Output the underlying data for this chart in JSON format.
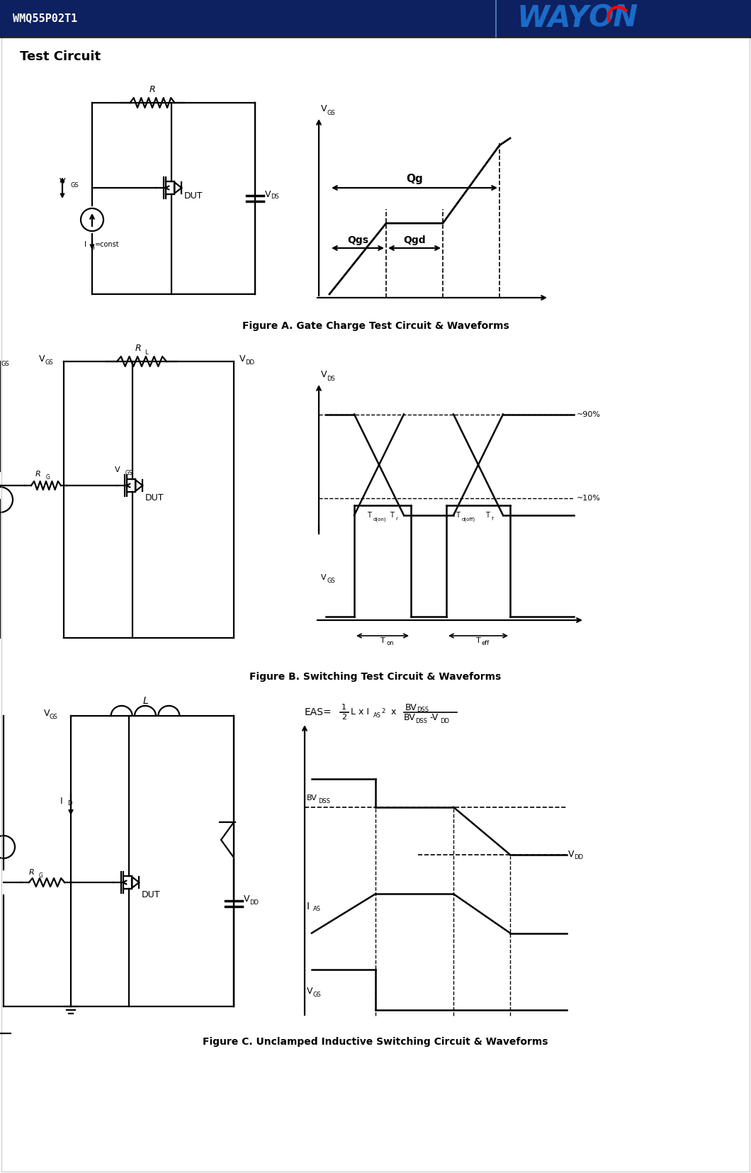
{
  "header_bg_color": "#0d2060",
  "header_text_color": "#ffffff",
  "header_part_number": "WMQ55P02T1",
  "page_bg": "#ffffff",
  "section_title": "Test Circuit",
  "fig_a_caption": "Figure A. Gate Charge Test Circuit & Waveforms",
  "fig_b_caption": "Figure B. Switching Test Circuit & Waveforms",
  "fig_c_caption": "Figure C. Unclamped Inductive Switching Circuit & Waveforms",
  "lw": 1.6,
  "black": "#000000"
}
